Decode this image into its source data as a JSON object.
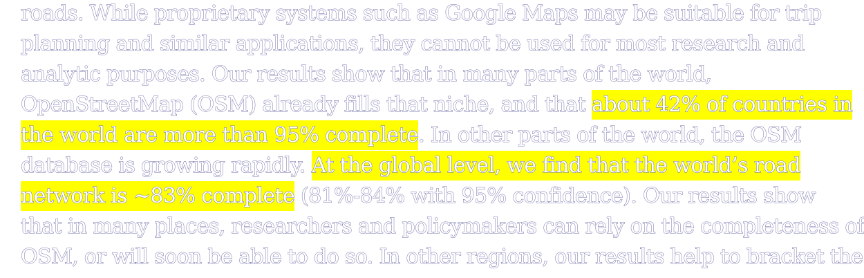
{
  "document": {
    "lines": [
      [
        {
          "text": "roads. While proprietary systems such as Google Maps may be suitable for trip",
          "highlight": false
        }
      ],
      [
        {
          "text": "planning and similar applications, they cannot be used for most research and",
          "highlight": false
        }
      ],
      [
        {
          "text": "analytic purposes. Our results show that in many parts of the world,",
          "highlight": false
        }
      ],
      [
        {
          "text": "OpenStreetMap (OSM) already fills that niche, and that ",
          "highlight": false
        },
        {
          "text": "about 42% of countries in",
          "highlight": true
        }
      ],
      [
        {
          "text": "the world are more than 95% complete",
          "highlight": true
        },
        {
          "text": ". In other parts of the world, the OSM",
          "highlight": false
        }
      ],
      [
        {
          "text": "database is growing rapidly. ",
          "highlight": false
        },
        {
          "text": "At the global level, we find that the world’s road",
          "highlight": true
        }
      ],
      [
        {
          "text": "network is ~83% complete",
          "highlight": true
        },
        {
          "text": " (81%-84% with 95% confidence). Our results show",
          "highlight": false
        }
      ],
      [
        {
          "text": "that in many places, researchers and policymakers can rely on the completeness of",
          "highlight": false
        }
      ],
      [
        {
          "text": "OSM, or will soon be able to do so. In other regions, our results help to bracket the",
          "highlight": false
        }
      ]
    ],
    "highlight_color": "#ffff00",
    "text_outline_color": "#6f6fa8"
  }
}
